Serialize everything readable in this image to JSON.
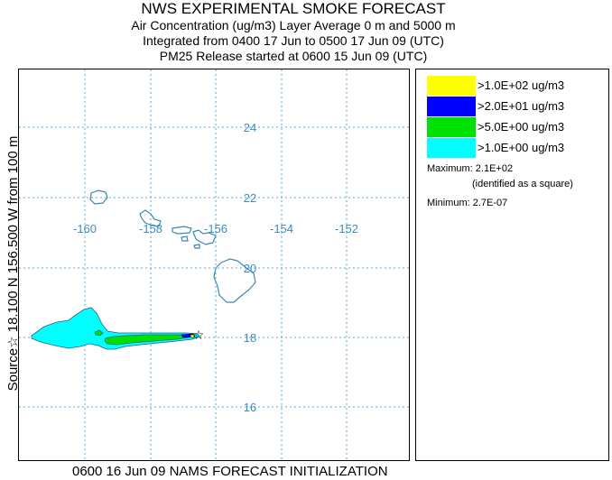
{
  "header": {
    "title": "NWS EXPERIMENTAL SMOKE FORECAST",
    "line1": "Air Concentration (ug/m3) Layer Average    0 m and  5000 m",
    "line2": "Integrated from 0400 17 Jun to 0500 17 Jun 09 (UTC)",
    "line3": "PM25 Release started at 0600 15 Jun 09 (UTC)"
  },
  "side_label": "Source☆ 18.100  N 156.500  W     from   100 m",
  "footer": "0600 16 Jun 09 NAMS FORECAST INITIALIZATION",
  "map": {
    "lon_labels": [
      "-160",
      "-158",
      "-156",
      "-154",
      "-152"
    ],
    "lat_labels": [
      "24",
      "22",
      "20",
      "18",
      "16"
    ],
    "source_marker": "☆",
    "colors": {
      "grid": "#5aa7d8",
      "coast": "#3a87b8",
      "label": "#3a8ec4"
    }
  },
  "legend": {
    "entries": [
      {
        "label": ">1.0E+02 ug/m3",
        "color": "#ffff00"
      },
      {
        "label": ">2.0E+01 ug/m3",
        "color": "#0000ff"
      },
      {
        "label": ">5.0E+00 ug/m3",
        "color": "#00e000"
      },
      {
        "label": ">1.0E+00 ug/m3",
        "color": "#00ffff"
      }
    ],
    "maximum": "Maximum: 2.1E+02",
    "maximum_note": "(identified as a square)",
    "minimum": "Minimum: 2.7E-07"
  }
}
